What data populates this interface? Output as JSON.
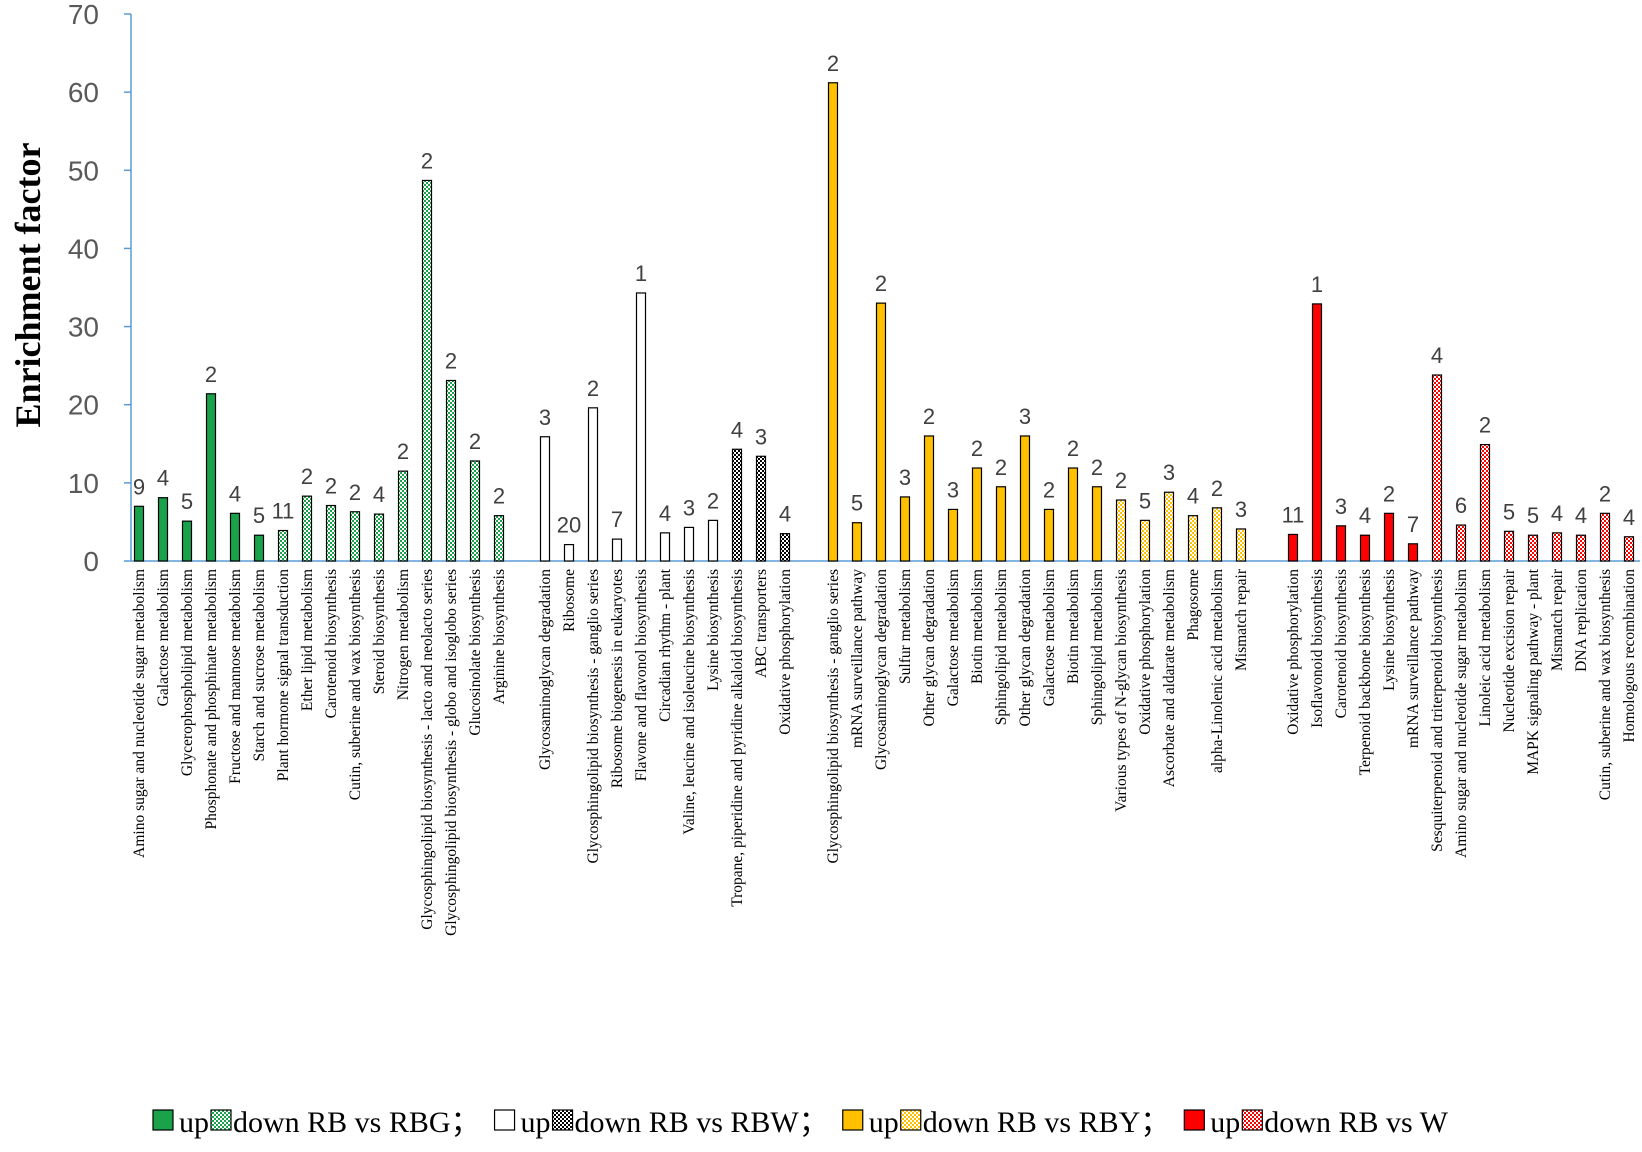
{
  "chart_data": {
    "type": "bar",
    "ylabel": "Enrichment factor",
    "ylim": [
      0,
      70
    ],
    "yticks": [
      0,
      10,
      20,
      30,
      40,
      50,
      60,
      70
    ],
    "grid": false,
    "legend_position": "bottom",
    "colors": {
      "green": "#1aa24a",
      "white": "#ffffff",
      "yellow": "#ffc000",
      "red": "#ff0000"
    },
    "groups": [
      {
        "name": "RB vs RBG",
        "color": "green",
        "bars": [
          {
            "category": "Amino sugar and nucleotide sugar metabolism",
            "value": 7.0,
            "label": "9",
            "pattern": "up"
          },
          {
            "category": "Galactose metabolism",
            "value": 8.1,
            "label": "4",
            "pattern": "up"
          },
          {
            "category": "Glycerophospholipid metabolism",
            "value": 5.1,
            "label": "5",
            "pattern": "up"
          },
          {
            "category": "Phosphonate and phosphinate metabolism",
            "value": 21.4,
            "label": "2",
            "pattern": "up"
          },
          {
            "category": "Fructose and mannose metabolism",
            "value": 6.1,
            "label": "4",
            "pattern": "up"
          },
          {
            "category": "Starch and sucrose metabolism",
            "value": 3.3,
            "label": "5",
            "pattern": "up"
          },
          {
            "category": "Plant hormone signal transduction",
            "value": 3.9,
            "label": "11",
            "pattern": "down"
          },
          {
            "category": "Ether lipid metabolism",
            "value": 8.3,
            "label": "2",
            "pattern": "down"
          },
          {
            "category": "Carotenoid biosynthesis",
            "value": 7.1,
            "label": "2",
            "pattern": "down"
          },
          {
            "category": "Cutin, suberine and wax biosynthesis",
            "value": 6.3,
            "label": "2",
            "pattern": "down"
          },
          {
            "category": "Steroid biosynthesis",
            "value": 6.0,
            "label": "4",
            "pattern": "down"
          },
          {
            "category": "Nitrogen metabolism",
            "value": 11.5,
            "label": "2",
            "pattern": "down"
          },
          {
            "category": "Glycosphingolipid biosynthesis - lacto and neolacto series",
            "value": 48.7,
            "label": "2",
            "pattern": "down"
          },
          {
            "category": "Glycosphingolipid biosynthesis - globo and isoglobo series",
            "value": 23.1,
            "label": "2",
            "pattern": "down"
          },
          {
            "category": "Glucosinolate biosynthesis",
            "value": 12.8,
            "label": "2",
            "pattern": "down"
          },
          {
            "category": "Arginine biosynthesis",
            "value": 5.8,
            "label": "2",
            "pattern": "down"
          }
        ]
      },
      {
        "name": "RB vs RBW",
        "color": "white",
        "bars": [
          {
            "category": "Glycosaminoglycan degradation",
            "value": 15.9,
            "label": "3",
            "pattern": "up"
          },
          {
            "category": "Ribosome",
            "value": 2.1,
            "label": "20",
            "pattern": "up"
          },
          {
            "category": "Glycosphingolipid biosynthesis - ganglio series",
            "value": 19.6,
            "label": "2",
            "pattern": "up"
          },
          {
            "category": "Ribosome biogenesis in eukaryotes",
            "value": 2.8,
            "label": "7",
            "pattern": "up"
          },
          {
            "category": "Flavone and flavonol biosynthesis",
            "value": 34.3,
            "label": "1",
            "pattern": "up"
          },
          {
            "category": "Circadian rhythm - plant",
            "value": 3.6,
            "label": "4",
            "pattern": "up"
          },
          {
            "category": "Valine, leucine and isoleucine biosynthesis",
            "value": 4.3,
            "label": "3",
            "pattern": "up"
          },
          {
            "category": "Lysine biosynthesis",
            "value": 5.2,
            "label": "2",
            "pattern": "up"
          },
          {
            "category": "Tropane, piperidine and pyridine alkaloid biosynthesis",
            "value": 14.3,
            "label": "4",
            "pattern": "down"
          },
          {
            "category": "ABC transporters",
            "value": 13.4,
            "label": "3",
            "pattern": "down"
          },
          {
            "category": "Oxidative phosphorylation",
            "value": 3.5,
            "label": "4",
            "pattern": "down"
          }
        ]
      },
      {
        "name": "RB vs RBY",
        "color": "yellow",
        "bars": [
          {
            "category": "Glycosphingolipid biosynthesis - ganglio series",
            "value": 61.2,
            "label": "2",
            "pattern": "up"
          },
          {
            "category": "mRNA surveillance pathway",
            "value": 4.9,
            "label": "5",
            "pattern": "up"
          },
          {
            "category": "Glycosaminoglycan degradation",
            "value": 33.0,
            "label": "2",
            "pattern": "up"
          },
          {
            "category": "Sulfur metabolism",
            "value": 8.2,
            "label": "3",
            "pattern": "up"
          },
          {
            "category": "Other glycan degradation",
            "value": 16.0,
            "label": "2",
            "pattern": "up"
          },
          {
            "category": "Galactose metabolism",
            "value": 6.6,
            "label": "3",
            "pattern": "up"
          },
          {
            "category": "Biotin metabolism",
            "value": 11.9,
            "label": "2",
            "pattern": "up"
          },
          {
            "category": "Sphingolipid metabolism",
            "value": 9.5,
            "label": "2",
            "pattern": "up"
          },
          {
            "category": "Other glycan degradation",
            "value": 16.0,
            "label": "3",
            "pattern": "up"
          },
          {
            "category": "Galactose metabolism",
            "value": 6.6,
            "label": "2",
            "pattern": "up"
          },
          {
            "category": "Biotin metabolism",
            "value": 11.9,
            "label": "2",
            "pattern": "up"
          },
          {
            "category": "Sphingolipid metabolism",
            "value": 9.5,
            "label": "2",
            "pattern": "up"
          },
          {
            "category": "Various types of N-glycan biosynthesis",
            "value": 7.8,
            "label": "2",
            "pattern": "down"
          },
          {
            "category": "Oxidative phosphorylation",
            "value": 5.2,
            "label": "5",
            "pattern": "down"
          },
          {
            "category": "Ascorbate and aldarate metabolism",
            "value": 8.8,
            "label": "3",
            "pattern": "down"
          },
          {
            "category": "Phagosome",
            "value": 5.8,
            "label": "4",
            "pattern": "down"
          },
          {
            "category": "alpha-Linolenic acid metabolism",
            "value": 6.8,
            "label": "2",
            "pattern": "down"
          },
          {
            "category": "Mismatch repair",
            "value": 4.1,
            "label": "3",
            "pattern": "down"
          }
        ]
      },
      {
        "name": "RB vs W",
        "color": "red",
        "bars": [
          {
            "category": "Oxidative phosphorylation",
            "value": 3.4,
            "label": "11",
            "pattern": "up"
          },
          {
            "category": "Isoflavonoid biosynthesis",
            "value": 32.9,
            "label": "1",
            "pattern": "up"
          },
          {
            "category": "Carotenoid biosynthesis",
            "value": 4.5,
            "label": "3",
            "pattern": "up"
          },
          {
            "category": "Terpenoid backbone biosynthesis",
            "value": 3.3,
            "label": "4",
            "pattern": "up"
          },
          {
            "category": "Lysine biosynthesis",
            "value": 6.1,
            "label": "2",
            "pattern": "up"
          },
          {
            "category": "mRNA surveillance pathway",
            "value": 2.2,
            "label": "7",
            "pattern": "up"
          },
          {
            "category": "Sesquiterpenoid and triterpenoid biosynthesis",
            "value": 23.8,
            "label": "4",
            "pattern": "down"
          },
          {
            "category": "Amino sugar and nucleotide sugar metabolism",
            "value": 4.6,
            "label": "6",
            "pattern": "down"
          },
          {
            "category": "Linoleic acid metabolism",
            "value": 14.9,
            "label": "2",
            "pattern": "down"
          },
          {
            "category": "Nucleotide excision repair",
            "value": 3.8,
            "label": "5",
            "pattern": "down"
          },
          {
            "category": "MAPK signaling pathway - plant",
            "value": 3.3,
            "label": "5",
            "pattern": "down"
          },
          {
            "category": "Mismatch repair",
            "value": 3.6,
            "label": "4",
            "pattern": "down"
          },
          {
            "category": "DNA replication",
            "value": 3.3,
            "label": "4",
            "pattern": "down"
          },
          {
            "category": "Cutin, suberine and wax biosynthesis",
            "value": 6.1,
            "label": "2",
            "pattern": "down"
          },
          {
            "category": "Homologous recombination",
            "value": 3.1,
            "label": "4",
            "pattern": "down"
          }
        ]
      }
    ],
    "legend": [
      {
        "up_text": "up",
        "down_text": "down RB vs RBG",
        "separator": "；",
        "color": "green"
      },
      {
        "up_text": "up",
        "down_text": "down RB vs RBW",
        "separator": "；",
        "color": "white"
      },
      {
        "up_text": "up",
        "down_text": "down RB vs RBY",
        "separator": "；",
        "color": "yellow"
      },
      {
        "up_text": "up",
        "down_text": "down RB vs W",
        "separator": "",
        "color": "red"
      }
    ]
  }
}
